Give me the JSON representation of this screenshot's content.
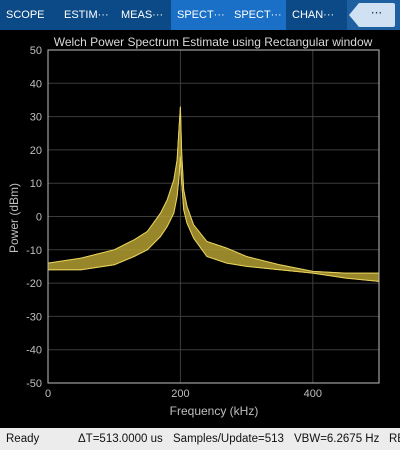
{
  "tabs": [
    {
      "label": "SCOPE",
      "active": false
    },
    {
      "label": "ESTIM···",
      "active": false
    },
    {
      "label": "MEAS···",
      "active": false
    },
    {
      "label": "SPECT···",
      "active": true
    },
    {
      "label": "SPECT···",
      "active": true
    },
    {
      "label": "CHAN···",
      "active": false
    }
  ],
  "overflow_label": "···",
  "status": {
    "state": "Ready",
    "delta_t": "ΔT=513.0000 us",
    "samples_per_update": "Samples/Update=513",
    "vbw": "VBW=6.2675 Hz",
    "truncated": "RBW"
  },
  "chart_data": {
    "type": "line",
    "title": "Welch Power Spectrum Estimate using Rectangular window",
    "xlabel": "Frequency (kHz)",
    "ylabel": "Power (dBm)",
    "xlim": [
      0,
      500
    ],
    "ylim": [
      -50,
      50
    ],
    "xticks": [
      0,
      200,
      400
    ],
    "yticks": [
      -50,
      -40,
      -30,
      -20,
      -10,
      0,
      10,
      20,
      30,
      40,
      50
    ],
    "grid": true,
    "colors": {
      "trace": "#e6d15a",
      "axes": "#bfbfbf",
      "grid": "#3c3c3c",
      "title": "#d9d9d9"
    },
    "series": [
      {
        "x": [
          0,
          50,
          100,
          130,
          150,
          170,
          180,
          190,
          195,
          198,
          200,
          202,
          205,
          210,
          220,
          240,
          270,
          300,
          350,
          400,
          450,
          500
        ],
        "upper": [
          -14,
          -12.5,
          -10,
          -7,
          -4.5,
          1,
          5,
          11,
          17,
          27,
          33,
          19,
          8,
          3,
          -2.5,
          -7.5,
          -9.5,
          -12,
          -14.5,
          -16.5,
          -17,
          -17
        ],
        "lower": [
          -16,
          -16,
          -14.5,
          -12,
          -10,
          -6,
          -3,
          1,
          6,
          12,
          18,
          10,
          2,
          -2,
          -6.5,
          -12,
          -14,
          -15,
          -16,
          -17,
          -18.5,
          -19.5
        ]
      }
    ]
  }
}
